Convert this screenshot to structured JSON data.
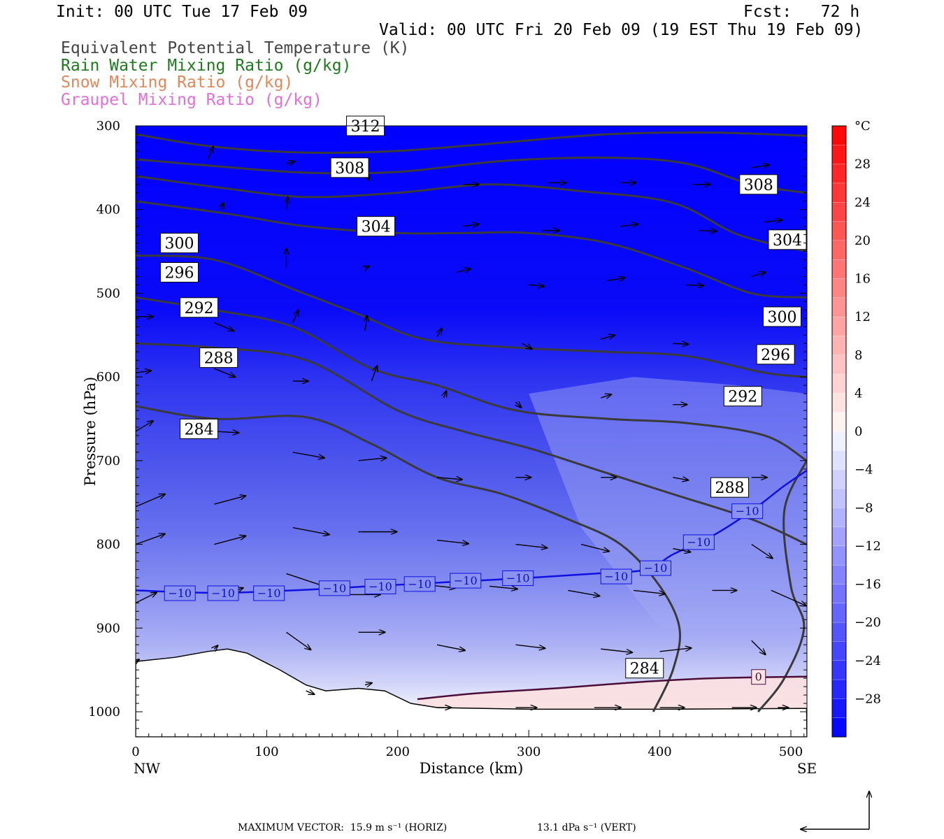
{
  "header": {
    "init": "Init: 00 UTC Tue 17 Feb 09",
    "fcst": "Fcst:   72 h",
    "valid": "Valid: 00 UTC Fri 20 Feb 09 (19 EST Thu 19 Feb 09)"
  },
  "fields": [
    {
      "label": "Equivalent Potential Temperature (K)",
      "color": "#444444"
    },
    {
      "label": "Rain Water Mixing Ratio (g/kg)",
      "color": "#1f7a1f"
    },
    {
      "label": "Snow Mixing Ratio (g/kg)",
      "color": "#e0885a"
    },
    {
      "label": "Graupel Mixing Ratio (g/kg)",
      "color": "#e070d8"
    }
  ],
  "footer": {
    "max_vector": "MAXIMUM VECTOR:  15.9 m s⁻¹ (HORIZ)",
    "vert_vector": "13.1 dPa s⁻¹ (VERT)"
  },
  "chart_data": {
    "type": "heatmap",
    "xlabel": "Distance (km)",
    "ylabel": "Pressure (hPa)",
    "xlim": [
      0,
      512
    ],
    "ylim": [
      1030,
      300
    ],
    "x_ticks": [
      0,
      100,
      200,
      300,
      400,
      500
    ],
    "y_ticks": [
      300,
      400,
      500,
      600,
      700,
      800,
      900,
      1000
    ],
    "x_end_labels": {
      "left": "NW",
      "right": "SE"
    },
    "colorbar": {
      "unit": "°C",
      "ticks": [
        28,
        24,
        20,
        16,
        12,
        8,
        4,
        0,
        -4,
        -8,
        -12,
        -16,
        -20,
        -24,
        -28
      ],
      "range": [
        -32,
        32
      ],
      "cold_color": "#0000ff",
      "warm_color": "#ff0000"
    },
    "theta_e_contours": [
      {
        "value": 312,
        "label": "312",
        "points": [
          [
            0,
            310
          ],
          [
            60,
            325
          ],
          [
            130,
            332
          ],
          [
            200,
            330
          ],
          [
            280,
            320
          ],
          [
            360,
            310
          ],
          [
            440,
            308
          ],
          [
            512,
            312
          ]
        ]
      },
      {
        "value": 308,
        "label": "308",
        "points": [
          [
            0,
            340
          ],
          [
            60,
            348
          ],
          [
            130,
            356
          ],
          [
            200,
            355
          ],
          [
            280,
            342
          ],
          [
            360,
            338
          ],
          [
            420,
            345
          ],
          [
            470,
            370
          ],
          [
            512,
            380
          ]
        ]
      },
      {
        "value": 304,
        "label": "304",
        "points": [
          [
            0,
            360
          ],
          [
            70,
            375
          ],
          [
            130,
            385
          ],
          [
            200,
            380
          ],
          [
            270,
            370
          ],
          [
            340,
            378
          ],
          [
            410,
            392
          ],
          [
            460,
            430
          ],
          [
            512,
            450
          ]
        ]
      },
      {
        "value": 300,
        "label": "300",
        "points": [
          [
            0,
            390
          ],
          [
            70,
            405
          ],
          [
            130,
            420
          ],
          [
            200,
            428
          ],
          [
            250,
            428
          ],
          [
            300,
            428
          ],
          [
            360,
            440
          ],
          [
            420,
            470
          ],
          [
            470,
            500
          ],
          [
            512,
            505
          ]
        ]
      },
      {
        "value": 296,
        "label": "296",
        "points": [
          [
            0,
            455
          ],
          [
            60,
            460
          ],
          [
            120,
            495
          ],
          [
            170,
            525
          ],
          [
            220,
            555
          ],
          [
            290,
            565
          ],
          [
            360,
            570
          ],
          [
            420,
            575
          ],
          [
            480,
            595
          ],
          [
            512,
            600
          ]
        ]
      },
      {
        "value": 292,
        "label": "292",
        "points": [
          [
            0,
            505
          ],
          [
            60,
            520
          ],
          [
            120,
            540
          ],
          [
            180,
            590
          ],
          [
            230,
            610
          ],
          [
            290,
            640
          ],
          [
            360,
            650
          ],
          [
            420,
            655
          ],
          [
            480,
            670
          ],
          [
            512,
            700
          ]
        ]
      },
      {
        "value": 288,
        "label": "288",
        "points": [
          [
            0,
            560
          ],
          [
            60,
            565
          ],
          [
            130,
            580
          ],
          [
            200,
            640
          ],
          [
            250,
            665
          ],
          [
            300,
            685
          ],
          [
            350,
            710
          ],
          [
            410,
            740
          ],
          [
            470,
            770
          ],
          [
            512,
            800
          ]
        ]
      },
      {
        "value": 284,
        "label": "284",
        "points": [
          [
            0,
            635
          ],
          [
            60,
            650
          ],
          [
            130,
            648
          ],
          [
            180,
            680
          ],
          [
            230,
            720
          ],
          [
            280,
            740
          ],
          [
            330,
            770
          ],
          [
            370,
            800
          ],
          [
            400,
            850
          ],
          [
            415,
            900
          ],
          [
            410,
            950
          ],
          [
            395,
            1000
          ]
        ]
      }
    ],
    "isotherm_minus10": {
      "value": -10,
      "label": "−10",
      "points": [
        [
          0,
          855
        ],
        [
          60,
          858
        ],
        [
          120,
          855
        ],
        [
          180,
          850
        ],
        [
          240,
          845
        ],
        [
          300,
          840
        ],
        [
          350,
          835
        ],
        [
          390,
          830
        ],
        [
          410,
          812
        ],
        [
          440,
          790
        ],
        [
          470,
          760
        ],
        [
          495,
          730
        ],
        [
          512,
          712
        ]
      ]
    },
    "isotherm_0": {
      "value": 0,
      "label": "0",
      "points": [
        [
          215,
          985
        ],
        [
          260,
          978
        ],
        [
          320,
          972
        ],
        [
          380,
          965
        ],
        [
          440,
          960
        ],
        [
          512,
          958
        ]
      ]
    },
    "terrain_pressure": [
      [
        0,
        940
      ],
      [
        30,
        935
      ],
      [
        55,
        928
      ],
      [
        70,
        925
      ],
      [
        85,
        930
      ],
      [
        110,
        950
      ],
      [
        130,
        968
      ],
      [
        145,
        975
      ],
      [
        170,
        972
      ],
      [
        190,
        975
      ],
      [
        210,
        990
      ],
      [
        230,
        995
      ],
      [
        300,
        997
      ],
      [
        400,
        997
      ],
      [
        512,
        996
      ]
    ],
    "wind_vectors": [
      {
        "x": 55,
        "p": 340,
        "u": 8,
        "w": -18
      },
      {
        "x": 115,
        "p": 345,
        "u": 12,
        "w": -3
      },
      {
        "x": 175,
        "p": 355,
        "u": 6,
        "w": 12
      },
      {
        "x": 250,
        "p": 370,
        "u": 22,
        "w": 0
      },
      {
        "x": 315,
        "p": 368,
        "u": 25,
        "w": 0
      },
      {
        "x": 370,
        "p": 368,
        "u": 22,
        "w": 0
      },
      {
        "x": 425,
        "p": 370,
        "u": 25,
        "w": 0
      },
      {
        "x": 470,
        "p": 350,
        "u": 25,
        "w": -4
      },
      {
        "x": 65,
        "p": 400,
        "u": 4,
        "w": -10
      },
      {
        "x": 115,
        "p": 400,
        "u": 2,
        "w": -18
      },
      {
        "x": 185,
        "p": 418,
        "u": 8,
        "w": 10
      },
      {
        "x": 250,
        "p": 420,
        "u": 22,
        "w": -3
      },
      {
        "x": 310,
        "p": 425,
        "u": 25,
        "w": 0
      },
      {
        "x": 370,
        "p": 420,
        "u": 25,
        "w": -3
      },
      {
        "x": 430,
        "p": 425,
        "u": 25,
        "w": 1
      },
      {
        "x": 480,
        "p": 415,
        "u": 25,
        "w": -3
      },
      {
        "x": 115,
        "p": 470,
        "u": 0,
        "w": -28
      },
      {
        "x": 175,
        "p": 470,
        "u": 6,
        "w": -3
      },
      {
        "x": 245,
        "p": 475,
        "u": 20,
        "w": -5
      },
      {
        "x": 300,
        "p": 490,
        "u": 22,
        "w": 2
      },
      {
        "x": 360,
        "p": 485,
        "u": 25,
        "w": -4
      },
      {
        "x": 420,
        "p": 490,
        "u": 25,
        "w": 1
      },
      {
        "x": 470,
        "p": 480,
        "u": 20,
        "w": -6
      },
      {
        "x": 0,
        "p": 528,
        "u": 25,
        "w": 0
      },
      {
        "x": 60,
        "p": 535,
        "u": 28,
        "w": 12
      },
      {
        "x": 120,
        "p": 535,
        "u": 8,
        "w": -18
      },
      {
        "x": 175,
        "p": 545,
        "u": 3,
        "w": -22
      },
      {
        "x": 230,
        "p": 552,
        "u": 7,
        "w": -12
      },
      {
        "x": 295,
        "p": 560,
        "u": 14,
        "w": 8
      },
      {
        "x": 355,
        "p": 555,
        "u": 20,
        "w": -6
      },
      {
        "x": 410,
        "p": 560,
        "u": 22,
        "w": 1
      },
      {
        "x": 0,
        "p": 595,
        "u": 22,
        "w": -3
      },
      {
        "x": 60,
        "p": 590,
        "u": 30,
        "w": 12
      },
      {
        "x": 120,
        "p": 605,
        "u": 22,
        "w": 0
      },
      {
        "x": 180,
        "p": 605,
        "u": 8,
        "w": -22
      },
      {
        "x": 235,
        "p": 625,
        "u": 4,
        "w": -10
      },
      {
        "x": 290,
        "p": 630,
        "u": 8,
        "w": 8
      },
      {
        "x": 355,
        "p": 625,
        "u": 15,
        "w": -5
      },
      {
        "x": 410,
        "p": 633,
        "u": 20,
        "w": 0
      },
      {
        "x": 0,
        "p": 665,
        "u": 25,
        "w": -15
      },
      {
        "x": 60,
        "p": 665,
        "u": 35,
        "w": 2
      },
      {
        "x": 120,
        "p": 690,
        "u": 45,
        "w": 8
      },
      {
        "x": 170,
        "p": 700,
        "u": 40,
        "w": -4
      },
      {
        "x": 230,
        "p": 720,
        "u": 36,
        "w": 3
      },
      {
        "x": 290,
        "p": 720,
        "u": 22,
        "w": 0
      },
      {
        "x": 355,
        "p": 720,
        "u": 22,
        "w": 0
      },
      {
        "x": 410,
        "p": 720,
        "u": 22,
        "w": 4
      },
      {
        "x": 470,
        "p": 720,
        "u": 22,
        "w": 0
      },
      {
        "x": 0,
        "p": 755,
        "u": 42,
        "w": -18
      },
      {
        "x": 60,
        "p": 752,
        "u": 45,
        "w": -12
      },
      {
        "x": 0,
        "p": 800,
        "u": 42,
        "w": -15
      },
      {
        "x": 60,
        "p": 800,
        "u": 45,
        "w": -12
      },
      {
        "x": 120,
        "p": 780,
        "u": 52,
        "w": 10
      },
      {
        "x": 170,
        "p": 785,
        "u": 55,
        "w": 0
      },
      {
        "x": 230,
        "p": 795,
        "u": 45,
        "w": 5
      },
      {
        "x": 290,
        "p": 800,
        "u": 45,
        "w": 5
      },
      {
        "x": 340,
        "p": 800,
        "u": 40,
        "w": 10
      },
      {
        "x": 410,
        "p": 805,
        "u": 25,
        "w": 5
      },
      {
        "x": 470,
        "p": 800,
        "u": 30,
        "w": 20
      },
      {
        "x": 0,
        "p": 870,
        "u": 30,
        "w": -15
      },
      {
        "x": 65,
        "p": 862,
        "u": 32,
        "w": -12
      },
      {
        "x": 115,
        "p": 835,
        "u": 60,
        "w": 20
      },
      {
        "x": 160,
        "p": 860,
        "u": 50,
        "w": 0
      },
      {
        "x": 220,
        "p": 848,
        "u": 45,
        "w": 5
      },
      {
        "x": 270,
        "p": 850,
        "u": 40,
        "w": 4
      },
      {
        "x": 330,
        "p": 855,
        "u": 45,
        "w": 8
      },
      {
        "x": 380,
        "p": 855,
        "u": 45,
        "w": 5
      },
      {
        "x": 440,
        "p": 855,
        "u": 35,
        "w": 0
      },
      {
        "x": 485,
        "p": 855,
        "u": 50,
        "w": 22
      },
      {
        "x": 0,
        "p": 940,
        "u": 5,
        "w": -3
      },
      {
        "x": 60,
        "p": 925,
        "u": 5,
        "w": -5
      },
      {
        "x": 115,
        "p": 905,
        "u": 35,
        "w": 25
      },
      {
        "x": 170,
        "p": 905,
        "u": 38,
        "w": 0
      },
      {
        "x": 230,
        "p": 920,
        "u": 40,
        "w": 8
      },
      {
        "x": 290,
        "p": 920,
        "u": 42,
        "w": 5
      },
      {
        "x": 355,
        "p": 925,
        "u": 45,
        "w": 5
      },
      {
        "x": 400,
        "p": 928,
        "u": 45,
        "w": -5
      },
      {
        "x": 470,
        "p": 915,
        "u": 20,
        "w": 20
      },
      {
        "x": 130,
        "p": 975,
        "u": 12,
        "w": 5
      },
      {
        "x": 175,
        "p": 968,
        "u": 10,
        "w": -3
      },
      {
        "x": 230,
        "p": 995,
        "u": 20,
        "w": 0
      },
      {
        "x": 290,
        "p": 995,
        "u": 30,
        "w": 0
      },
      {
        "x": 350,
        "p": 995,
        "u": 38,
        "w": 0
      },
      {
        "x": 400,
        "p": 995,
        "u": 35,
        "w": 0
      },
      {
        "x": 455,
        "p": 995,
        "u": 35,
        "w": 0
      },
      {
        "x": 490,
        "p": 995,
        "u": 15,
        "w": 0
      }
    ]
  }
}
